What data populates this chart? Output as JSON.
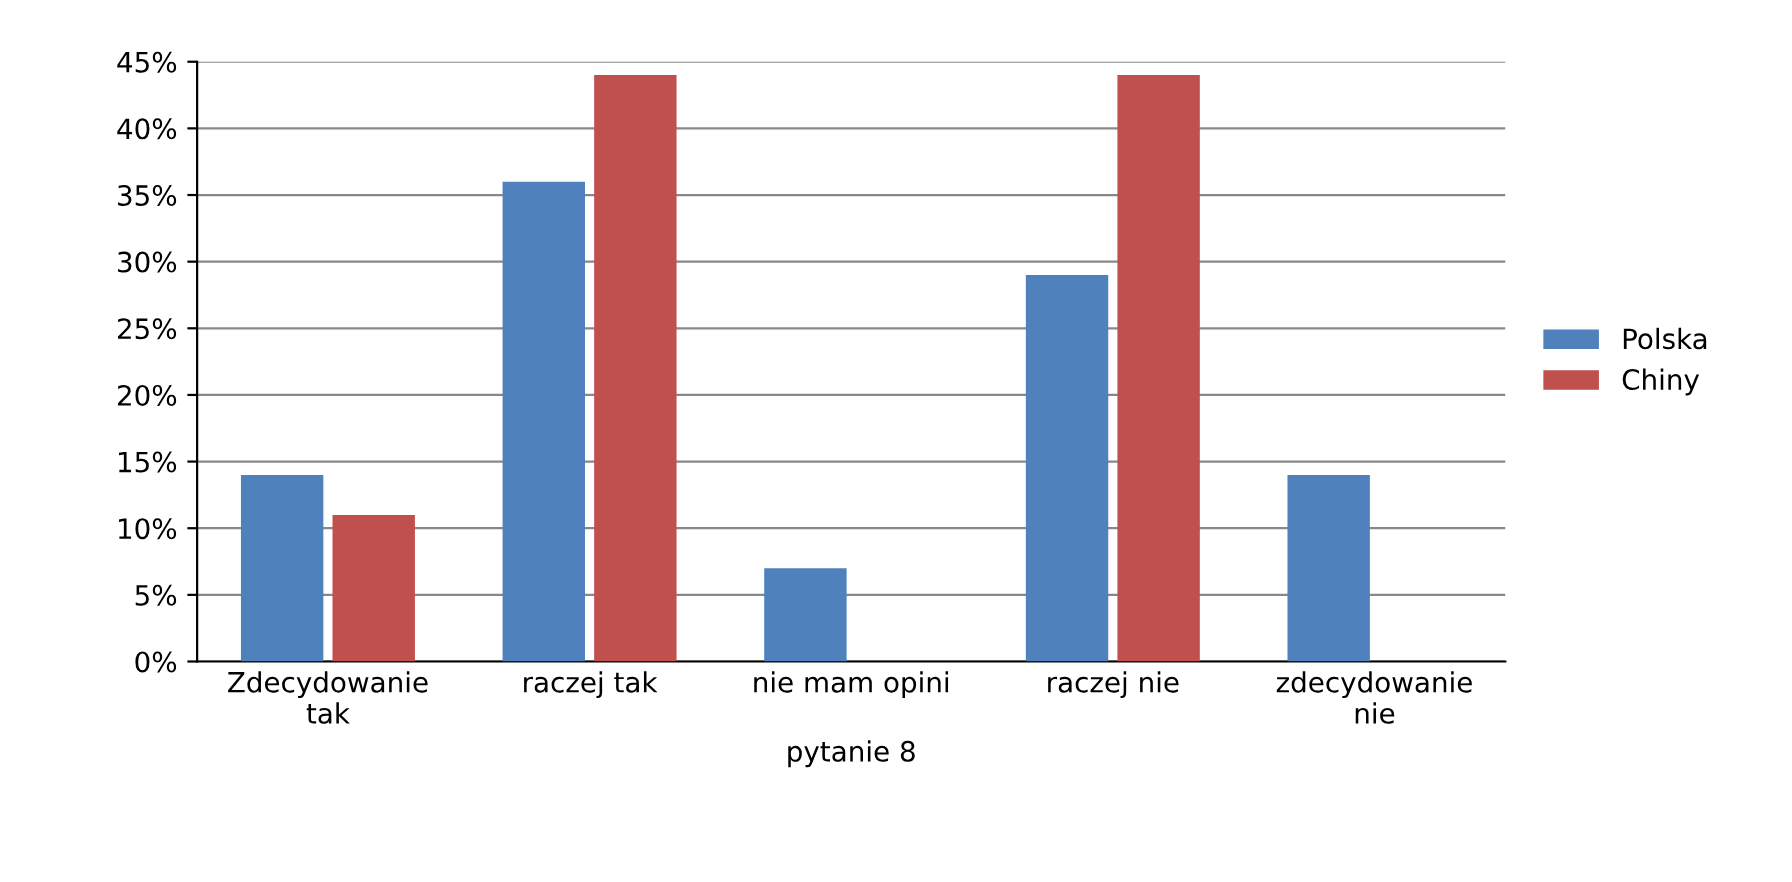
{
  "chart_data": {
    "type": "bar",
    "xlabel": "pytanie 8",
    "categories": [
      "Zdecydowanie\ntak",
      "raczej tak",
      "nie mam opini",
      "raczej nie",
      "zdecydowanie\nnie"
    ],
    "series": [
      {
        "name": "Polska",
        "color": "#4f81bd",
        "values": [
          14,
          36,
          7,
          29,
          14
        ]
      },
      {
        "name": "Chiny",
        "color": "#c0504d",
        "values": [
          11,
          44,
          0,
          44,
          0
        ]
      }
    ],
    "ylim": [
      0,
      45
    ],
    "yticks": [
      {
        "value": 0,
        "label": "0%"
      },
      {
        "value": 5,
        "label": "5%"
      },
      {
        "value": 10,
        "label": "10%"
      },
      {
        "value": 15,
        "label": "15%"
      },
      {
        "value": 20,
        "label": "20%"
      },
      {
        "value": 25,
        "label": "25%"
      },
      {
        "value": 30,
        "label": "30%"
      },
      {
        "value": 35,
        "label": "35%"
      },
      {
        "value": 40,
        "label": "40%"
      },
      {
        "value": 45,
        "label": "45%"
      }
    ],
    "grid": "y",
    "legend": "right"
  }
}
